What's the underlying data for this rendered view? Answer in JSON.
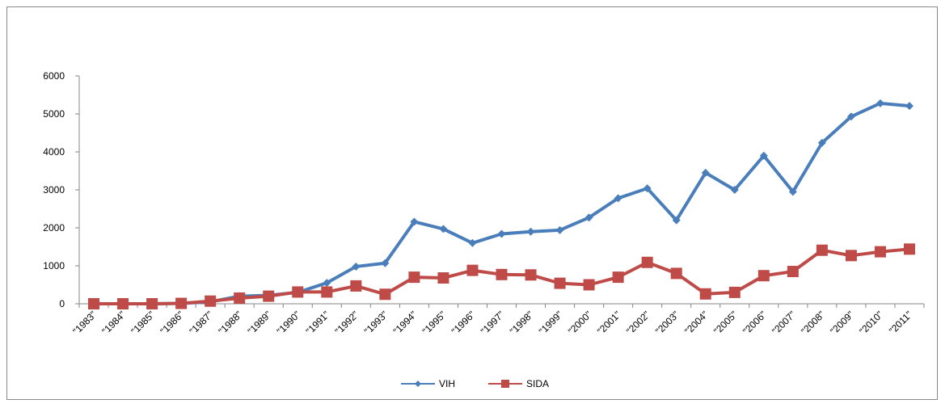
{
  "chart_data": {
    "type": "line",
    "categories": [
      "\"1983\"",
      "\"1984\"",
      "\"1985\"",
      "\"1986\"",
      "\"1987\"",
      "\"1988\"",
      "\"1989\"",
      "\"1990\"",
      "\"1991\"",
      "\"1992\"",
      "\"1993\"",
      "\"1994\"",
      "\"1995\"",
      "\"1996\"",
      "\"1997\"",
      "\"1998\"",
      "\"1999\"",
      "\"2000\"",
      "\"2001\"",
      "\"2002\"",
      "\"2003\"",
      "\"2004\"",
      "\"2005\"",
      "\"2006\"",
      "\"2007\"",
      "\"2008\"",
      "\"2009\"",
      "\"2010\"",
      "\"2011\""
    ],
    "series": [
      {
        "name": "VIH",
        "color": "#4a7ebb",
        "marker": "diamond",
        "values": [
          0,
          0,
          0,
          10,
          50,
          200,
          220,
          300,
          550,
          980,
          1070,
          2160,
          1970,
          1600,
          1840,
          1900,
          1940,
          2270,
          2780,
          3040,
          2200,
          3450,
          3000,
          3900,
          2950,
          4240,
          4930,
          5280,
          5210
        ]
      },
      {
        "name": "SIDA",
        "color": "#be4b48",
        "marker": "square",
        "values": [
          0,
          0,
          0,
          10,
          70,
          150,
          200,
          310,
          310,
          470,
          250,
          700,
          680,
          880,
          770,
          760,
          540,
          500,
          700,
          1090,
          800,
          260,
          300,
          740,
          850,
          1410,
          1270,
          1370,
          1440
        ]
      }
    ],
    "ylim": [
      0,
      6000
    ],
    "yticks": [
      0,
      1000,
      2000,
      3000,
      4000,
      5000,
      6000
    ],
    "legend": "bottom"
  }
}
